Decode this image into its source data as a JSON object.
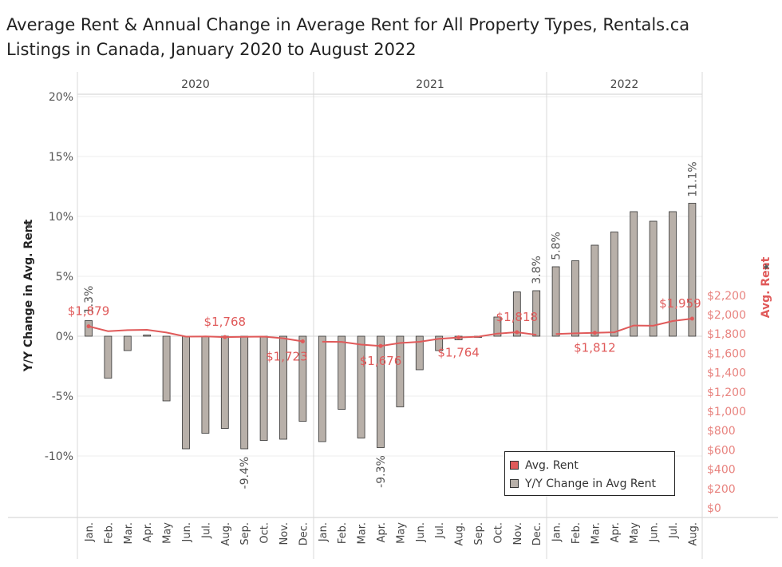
{
  "title_lines": [
    "Average Rent & Annual Change in Average Rent for All Property Types, Rentals.ca",
    "Listings in Canada, January 2020 to August 2022"
  ],
  "chart_data": {
    "type": "bar",
    "years": [
      "2020",
      "2021",
      "2022"
    ],
    "months": [
      "Jan.",
      "Feb.",
      "Mar.",
      "Apr.",
      "May",
      "Jun.",
      "Jul.",
      "Aug.",
      "Sep.",
      "Oct.",
      "Nov.",
      "Dec."
    ],
    "categories": [
      "Jan. 2020",
      "Feb. 2020",
      "Mar. 2020",
      "Apr. 2020",
      "May 2020",
      "Jun. 2020",
      "Jul. 2020",
      "Aug. 2020",
      "Sep. 2020",
      "Oct. 2020",
      "Nov. 2020",
      "Dec. 2020",
      "Jan. 2021",
      "Feb. 2021",
      "Mar. 2021",
      "Apr. 2021",
      "May 2021",
      "Jun. 2021",
      "Jul. 2021",
      "Aug. 2021",
      "Sep. 2021",
      "Oct. 2021",
      "Nov. 2021",
      "Dec. 2021",
      "Jan. 2022",
      "Feb. 2022",
      "Mar. 2022",
      "Apr. 2022",
      "May 2022",
      "Jun. 2022",
      "Jul. 2022",
      "Aug. 2022"
    ],
    "series": [
      {
        "name": "Y/Y Change in Avg Rent",
        "type": "bar",
        "axis": "left",
        "color": "#b8b0a9",
        "values": [
          1.3,
          -3.5,
          -1.2,
          0.1,
          -5.4,
          -9.4,
          -8.1,
          -7.7,
          -9.4,
          -8.7,
          -8.6,
          -7.1,
          -8.8,
          -6.1,
          -8.5,
          -9.3,
          -5.9,
          -2.8,
          -1.2,
          -0.3,
          -0.1,
          1.6,
          3.7,
          3.8,
          5.8,
          6.3,
          7.6,
          8.7,
          10.4,
          9.6,
          10.4,
          11.1
        ]
      },
      {
        "name": "Avg. Rent",
        "type": "line",
        "axis": "right",
        "color": "#e05a5a",
        "values": [
          1879,
          1829,
          1840,
          1843,
          1815,
          1773,
          1774,
          1768,
          1770,
          1773,
          1755,
          1723,
          1720,
          1718,
          1690,
          1676,
          1707,
          1719,
          1750,
          1764,
          1772,
          1804,
          1818,
          1792,
          1799,
          1807,
          1812,
          1817,
          1888,
          1885,
          1934,
          1959
        ]
      }
    ],
    "bar_labels": [
      {
        "index": 0,
        "text": "1.3%"
      },
      {
        "index": 8,
        "text": "-9.4%"
      },
      {
        "index": 15,
        "text": "-9.3%"
      },
      {
        "index": 23,
        "text": "3.8%"
      },
      {
        "index": 24,
        "text": "5.8%"
      },
      {
        "index": 31,
        "text": "11.1%"
      }
    ],
    "line_labels": [
      {
        "index": 0,
        "text": "$1,879"
      },
      {
        "index": 7,
        "text": "$1,768"
      },
      {
        "index": 11,
        "text": "$1,723"
      },
      {
        "index": 15,
        "text": "$1,676"
      },
      {
        "index": 19,
        "text": "$1,764"
      },
      {
        "index": 22,
        "text": "$1,818"
      },
      {
        "index": 26,
        "text": "$1,812"
      },
      {
        "index": 31,
        "text": "$1,959"
      }
    ],
    "ylabel_left": "Y/Y Change in Avg. Rent",
    "ylabel_right": "Avg. Rent",
    "ylim_left": [
      -15,
      20
    ],
    "ylim_right": [
      0,
      2200
    ],
    "yticks_left": [
      "20%",
      "15%",
      "10%",
      "5%",
      "0%",
      "-5%",
      "-10%"
    ],
    "yticks_right": [
      "$2,200",
      "$2,000",
      "$1,800",
      "$1,600",
      "$1,400",
      "$1,200",
      "$1,000",
      "$800",
      "$600",
      "$400",
      "$200",
      "$0"
    ],
    "legend": {
      "position": "bottom-right",
      "items": [
        {
          "label": "Avg. Rent",
          "color": "#e05a5a"
        },
        {
          "label": "Y/Y Change in Avg Rent",
          "color": "#b8b0a9"
        }
      ]
    }
  }
}
